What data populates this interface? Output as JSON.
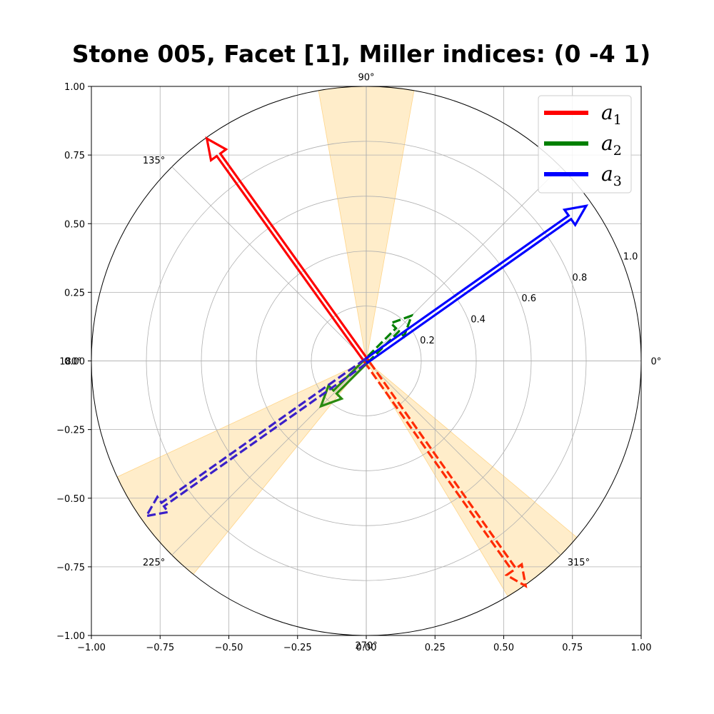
{
  "chart_data": {
    "type": "polar-vector",
    "title": "Stone 005, Facet [1], Miller indices: (0  -4  1)",
    "cartesian_axes": {
      "xlim": [
        -1.0,
        1.0
      ],
      "ylim": [
        -1.0,
        1.0
      ],
      "x_ticks": [
        "−1.00",
        "−0.75",
        "−0.50",
        "−0.25",
        "0.00",
        "0.25",
        "0.50",
        "0.75",
        "1.00"
      ],
      "y_ticks": [
        "−1.00",
        "−0.75",
        "−0.50",
        "−0.25",
        "0.00",
        "0.25",
        "0.50",
        "0.75",
        "1.00"
      ],
      "grid": true
    },
    "polar_axes": {
      "r_max": 1.0,
      "r_ticks": [
        "0.2",
        "0.4",
        "0.6",
        "0.8",
        "1.0"
      ],
      "angle_labels": [
        {
          "deg": 0,
          "label": "0°"
        },
        {
          "deg": 90,
          "label": "90°"
        },
        {
          "deg": 135,
          "label": "135°"
        },
        {
          "deg": 180,
          "label": "180°"
        },
        {
          "deg": 225,
          "label": "225°"
        },
        {
          "deg": 270,
          "label": "270°"
        },
        {
          "deg": 315,
          "label": "315°"
        }
      ],
      "r_tick_angle_deg": 22.5,
      "grid": true
    },
    "shaded_sectors": [
      {
        "theta_start": 80,
        "theta_end": 100,
        "r": 1.0
      },
      {
        "theta_start": 205,
        "theta_end": 231,
        "r": 1.0
      },
      {
        "theta_start": 301,
        "theta_end": 320,
        "r": 1.0
      }
    ],
    "shade_color": "#ffe7b8",
    "legend": {
      "placement": "top-right",
      "entries": [
        {
          "label": "a",
          "sub": "1",
          "color": "#ff0000"
        },
        {
          "label": "a",
          "sub": "2",
          "color": "#008000"
        },
        {
          "label": "a",
          "sub": "3",
          "color": "#0000ff"
        }
      ]
    },
    "vectors": [
      {
        "name": "a1",
        "color": "#ff0000",
        "style": "solid",
        "x": -0.58,
        "y": 0.81
      },
      {
        "name": "a1",
        "color": "#ff2a00",
        "style": "dashed",
        "x": 0.58,
        "y": -0.82
      },
      {
        "name": "a2",
        "color": "#008000",
        "style": "dashed",
        "x": 0.165,
        "y": 0.165
      },
      {
        "name": "a2",
        "color": "#2a8a10",
        "style": "solid",
        "x": -0.165,
        "y": -0.165
      },
      {
        "name": "a3",
        "color": "#0000ff",
        "style": "solid",
        "x": 0.8,
        "y": 0.565
      },
      {
        "name": "a3",
        "color": "#3a20c8",
        "style": "dashed",
        "x": -0.8,
        "y": -0.565
      }
    ]
  }
}
